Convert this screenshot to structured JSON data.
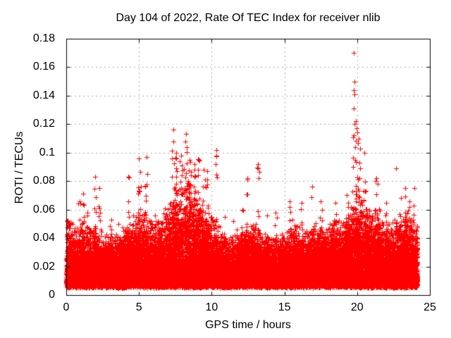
{
  "chart_data": {
    "type": "scatter",
    "title": "Day 104 of 2022, Rate Of TEC Index for receiver nlib",
    "xlabel": "GPS time / hours",
    "ylabel": "ROTI / TECUs",
    "xlim": [
      0,
      25
    ],
    "ylim": [
      0,
      0.18
    ],
    "xticks": [
      0,
      5,
      10,
      15,
      20,
      25
    ],
    "xtick_labels": [
      "0",
      "5",
      "10",
      "15",
      "20",
      "25"
    ],
    "yticks": [
      0,
      0.02,
      0.04,
      0.06,
      0.08,
      0.1,
      0.12,
      0.14,
      0.16,
      0.18
    ],
    "ytick_labels": [
      "0",
      "0.02",
      "0.04",
      "0.06",
      "0.08",
      "0.1",
      "0.12",
      "0.14",
      "0.16",
      "0.18"
    ],
    "grid": true,
    "legend": "none",
    "marker": {
      "glyph": "+",
      "color": "#ff0000",
      "size": 7
    },
    "grid_color": "#aaaaaa",
    "border_color": "#000000",
    "x_data_range": [
      0.0,
      24.15
    ],
    "seed": 1337,
    "base_points_per_hour": 950,
    "band": {
      "y_bottom": 0.005,
      "bottom_jitter": 0.005,
      "falloff": 2.1,
      "top_fuzz_lo": 0.7,
      "top_fuzz_hi": 1.3
    },
    "band_top_profile": [
      [
        0.0,
        0.046
      ],
      [
        0.5,
        0.038
      ],
      [
        1.0,
        0.042
      ],
      [
        1.5,
        0.036
      ],
      [
        2.0,
        0.04
      ],
      [
        2.5,
        0.035
      ],
      [
        3.0,
        0.036
      ],
      [
        3.5,
        0.034
      ],
      [
        4.0,
        0.038
      ],
      [
        4.5,
        0.042
      ],
      [
        5.0,
        0.048
      ],
      [
        5.5,
        0.046
      ],
      [
        6.0,
        0.04
      ],
      [
        6.5,
        0.042
      ],
      [
        7.0,
        0.05
      ],
      [
        7.5,
        0.056
      ],
      [
        8.0,
        0.062
      ],
      [
        8.4,
        0.066
      ],
      [
        8.8,
        0.06
      ],
      [
        9.2,
        0.056
      ],
      [
        9.6,
        0.05
      ],
      [
        10.0,
        0.046
      ],
      [
        10.5,
        0.04
      ],
      [
        11.0,
        0.032
      ],
      [
        11.5,
        0.034
      ],
      [
        12.0,
        0.038
      ],
      [
        12.5,
        0.042
      ],
      [
        13.0,
        0.04
      ],
      [
        13.5,
        0.035
      ],
      [
        14.0,
        0.032
      ],
      [
        14.5,
        0.034
      ],
      [
        15.0,
        0.036
      ],
      [
        15.5,
        0.042
      ],
      [
        16.0,
        0.038
      ],
      [
        16.5,
        0.036
      ],
      [
        17.0,
        0.04
      ],
      [
        17.5,
        0.042
      ],
      [
        18.0,
        0.038
      ],
      [
        18.5,
        0.046
      ],
      [
        19.0,
        0.04
      ],
      [
        19.5,
        0.05
      ],
      [
        20.0,
        0.056
      ],
      [
        20.5,
        0.052
      ],
      [
        21.0,
        0.046
      ],
      [
        21.5,
        0.048
      ],
      [
        22.0,
        0.04
      ],
      [
        22.5,
        0.042
      ],
      [
        23.0,
        0.044
      ],
      [
        23.5,
        0.048
      ],
      [
        24.0,
        0.042
      ],
      [
        24.15,
        0.04
      ]
    ],
    "spikes": [
      [
        0.07,
        0.052,
        0.06,
        8
      ],
      [
        0.9,
        0.066,
        0.1,
        12
      ],
      [
        1.15,
        0.071,
        0.08,
        10
      ],
      [
        1.45,
        0.058,
        0.06,
        8
      ],
      [
        2.0,
        0.083,
        0.1,
        14
      ],
      [
        2.3,
        0.075,
        0.08,
        10
      ],
      [
        3.1,
        0.053,
        0.1,
        8
      ],
      [
        3.6,
        0.05,
        0.1,
        6
      ],
      [
        4.25,
        0.083,
        0.1,
        12
      ],
      [
        4.6,
        0.056,
        0.08,
        8
      ],
      [
        5.0,
        0.096,
        0.12,
        20
      ],
      [
        5.5,
        0.097,
        0.1,
        18
      ],
      [
        6.1,
        0.056,
        0.1,
        8
      ],
      [
        6.8,
        0.061,
        0.1,
        10
      ],
      [
        7.35,
        0.108,
        0.1,
        16
      ],
      [
        7.55,
        0.1,
        0.08,
        14
      ],
      [
        7.9,
        0.098,
        0.1,
        16
      ],
      [
        8.2,
        0.108,
        0.12,
        24
      ],
      [
        8.5,
        0.095,
        0.1,
        20
      ],
      [
        8.8,
        0.092,
        0.1,
        18
      ],
      [
        9.1,
        0.095,
        0.1,
        16
      ],
      [
        9.45,
        0.088,
        0.08,
        12
      ],
      [
        9.7,
        0.087,
        0.06,
        8
      ],
      [
        10.3,
        0.098,
        0.06,
        10
      ],
      [
        10.9,
        0.055,
        0.08,
        6
      ],
      [
        11.5,
        0.052,
        0.1,
        6
      ],
      [
        12.1,
        0.06,
        0.1,
        8
      ],
      [
        12.45,
        0.082,
        0.08,
        8
      ],
      [
        13.2,
        0.092,
        0.08,
        12
      ],
      [
        13.8,
        0.056,
        0.08,
        6
      ],
      [
        14.4,
        0.058,
        0.1,
        6
      ],
      [
        15.35,
        0.066,
        0.1,
        14
      ],
      [
        16.2,
        0.065,
        0.08,
        8
      ],
      [
        16.9,
        0.076,
        0.06,
        8
      ],
      [
        17.5,
        0.066,
        0.1,
        10
      ],
      [
        18.5,
        0.065,
        0.1,
        12
      ],
      [
        19.3,
        0.07,
        0.08,
        10
      ],
      [
        19.8,
        0.12,
        0.15,
        30
      ],
      [
        20.1,
        0.11,
        0.12,
        24
      ],
      [
        20.5,
        0.1,
        0.1,
        18
      ],
      [
        21.3,
        0.082,
        0.12,
        14
      ],
      [
        22.0,
        0.065,
        0.1,
        10
      ],
      [
        23.0,
        0.068,
        0.1,
        10
      ],
      [
        23.3,
        0.075,
        0.06,
        8
      ],
      [
        23.6,
        0.066,
        0.1,
        10
      ],
      [
        23.95,
        0.075,
        0.08,
        10
      ]
    ],
    "outliers": [
      [
        7.38,
        0.116
      ],
      [
        8.22,
        0.113
      ],
      [
        9.05,
        0.0952
      ],
      [
        10.32,
        0.102
      ],
      [
        13.2,
        0.092
      ],
      [
        16.9,
        0.076
      ],
      [
        22.68,
        0.089
      ],
      [
        19.78,
        0.17
      ],
      [
        19.8,
        0.15
      ],
      [
        19.76,
        0.144
      ],
      [
        19.82,
        0.141
      ],
      [
        19.79,
        0.131
      ],
      [
        19.9,
        0.122
      ],
      [
        19.96,
        0.117
      ],
      [
        20.02,
        0.114
      ],
      [
        19.7,
        0.111
      ],
      [
        20.06,
        0.107
      ],
      [
        19.86,
        0.104
      ]
    ]
  }
}
